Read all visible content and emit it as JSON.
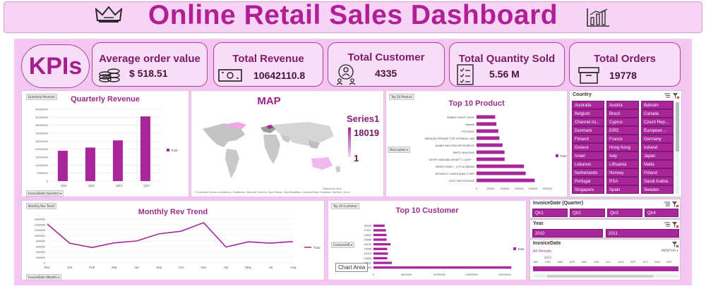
{
  "header": {
    "title": "Online Retail Sales Dashboard"
  },
  "kpis": {
    "label": "KPIs",
    "cards": [
      {
        "title": "Average order value",
        "value": "$ 518.51"
      },
      {
        "title": "Total Revenue",
        "value": "10642110.8"
      },
      {
        "title": "Total Customer",
        "value": "4335"
      },
      {
        "title": "Total Quantity Sold",
        "value": "5.56 M"
      },
      {
        "title": "Total Orders",
        "value": "19778"
      }
    ]
  },
  "quarterly": {
    "tag": "Quarterly Revenue",
    "title": "Quarterly Revenue",
    "field_button": "InvoiceDate (Quarter)",
    "legend": "Total",
    "yticks": [
      "0",
      "5000000",
      "10000000",
      "15000000",
      "20000000",
      "25000000",
      "30000000",
      "35000000",
      "40000000",
      "45000000"
    ]
  },
  "map": {
    "title": "MAP",
    "legend_title": "Series1",
    "legend_max": "18019",
    "legend_min": "1",
    "credit": "© Australian Bureau of Statistics, GeoNames, Microsoft, Navinfo, Open Places, OpenStreetMap, Overture Maps Fundation, TomTom, Zenrin",
    "powered": "Powered by Bing"
  },
  "top_product": {
    "tag": "Top 10 Product",
    "title": "Top 10 Product",
    "field_button": "Description",
    "legend": "Total",
    "xticks": [
      "0",
      "50000",
      "100000",
      "150000",
      "200000",
      "250000"
    ]
  },
  "monthly": {
    "tag": "Monthly Rev Trend",
    "title": "Monthly Rev Trend",
    "field_button": "InvoiceDate (Month)",
    "legend": "Total",
    "yticks": [
      "0",
      "200000",
      "400000",
      "600000",
      "800000",
      "1000000",
      "1200000",
      "1400000",
      "1600000"
    ]
  },
  "top_customer": {
    "tag": "Top 10 Customer",
    "title": "Top 10 Customer",
    "field_button": "CustomerID",
    "legend": "Total",
    "tooltip": "Chart Area",
    "xticks": [
      "0",
      "5000000",
      "10000000",
      "15000000",
      "20000000"
    ]
  },
  "slicers": {
    "country": {
      "title": "Country",
      "items": [
        "Australia",
        "Austria",
        "Bahrain",
        "Belgium",
        "Brazil",
        "Canada",
        "Channel Isl...",
        "Cyprus",
        "Czech Rep...",
        "Denmark",
        "EIRE",
        "European ...",
        "Finland",
        "France",
        "Germany",
        "Greece",
        "Hong Kong",
        "Iceland",
        "Israel",
        "Italy",
        "Japan",
        "Lebanon",
        "Lithuania",
        "Malta",
        "Netherlands",
        "Norway",
        "Poland",
        "Portugal",
        "RSA",
        "Saudi Arabia",
        "Singapore",
        "Spain",
        "Sweden"
      ]
    },
    "quarter": {
      "title": "InvoiceDate (Quarter)",
      "items": [
        "Qtr1",
        "Qtr2",
        "Qtr3",
        "Qtr4"
      ]
    },
    "year": {
      "title": "Year",
      "items": [
        "2010",
        "2011"
      ]
    },
    "timeline": {
      "title": "InvoiceDate",
      "period": "All Periods",
      "level": "MONTHS",
      "year": "2011",
      "months": [
        "JAN",
        "FEB",
        "MAR",
        "APR",
        "MAY",
        "JUN",
        "JUL",
        "AUG",
        "SEP",
        "OCT",
        "NOV",
        "DEC"
      ]
    }
  },
  "chart_data": [
    {
      "type": "bar",
      "title": "Quarterly Revenue",
      "categories": [
        "Qtr1",
        "Qtr2",
        "Qtr3",
        "Qtr4"
      ],
      "series": [
        {
          "name": "Total",
          "values": [
            19000000,
            21000000,
            25500000,
            40500000
          ]
        }
      ],
      "ylim": [
        0,
        45000000
      ]
    },
    {
      "type": "bar",
      "orientation": "horizontal",
      "title": "Top 10 Product",
      "categories": [
        "RABBIT NIGHT LIGHT",
        "Manual",
        "POSTAGE",
        "MEDIUM CERAMIC TOP STORAGE JAR",
        "JUMBO BAG RED RETROSPOT",
        "PARTY BUNTING",
        "WHITE HANGING HEART T-LIGHT ...",
        "PAPER CRAFT , LITTLE BIRDIE",
        "REGENCY CAKESTAND 3 TIER",
        "DOTCOM POSTAGE"
      ],
      "series": [
        {
          "name": "Total",
          "values": [
            66000,
            70000,
            77000,
            81000,
            92000,
            99000,
            99500,
            168000,
            174000,
            206000
          ]
        }
      ],
      "xlim": [
        0,
        250000
      ]
    },
    {
      "type": "line",
      "title": "Monthly Rev Trend",
      "categories": [
        "Dec",
        "Jan",
        "Feb",
        "Mar",
        "Apr",
        "Sep",
        "Oct",
        "Nov",
        "Apr",
        "May",
        "Jul",
        "Aug"
      ],
      "series": [
        {
          "name": "Total",
          "values": [
            1420000,
            720000,
            560000,
            730000,
            800000,
            1060000,
            1160000,
            1470000,
            580000,
            770000,
            720000,
            780000
          ]
        }
      ],
      "ylim": [
        0,
        1600000
      ]
    },
    {
      "type": "bar",
      "orientation": "horizontal",
      "title": "Top 10 Customer",
      "categories": [
        "16029",
        "17511",
        "14911",
        "14646",
        "18102",
        "14096",
        "12415",
        "13694",
        "15311",
        "17450"
      ],
      "series": [
        {
          "name": "Total",
          "values": [
            1700000,
            1900000,
            2000000,
            2000000,
            2600000,
            2100000,
            2200000,
            2100000,
            2800000,
            21000000
          ]
        }
      ],
      "xlim": [
        0,
        20000000
      ]
    }
  ]
}
